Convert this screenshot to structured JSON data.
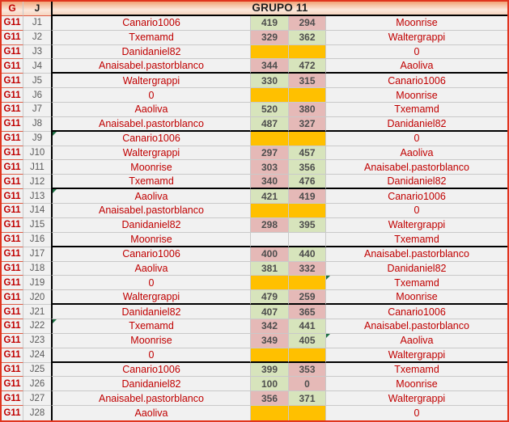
{
  "header": {
    "g": "G",
    "j": "J",
    "title": "GRUPO 11"
  },
  "group_code": "G11",
  "colors": {
    "outer_border": "#E0351F",
    "header_gradient_top": "#F2A477",
    "win_cell": "#D7E4BC",
    "loss_cell": "#E5B9B7",
    "pending_cell": "#FFC000",
    "row_background": "#F1F1F1",
    "gridline": "#C9C9C9",
    "g_column_gridline": "#DD5A43",
    "name_text": "#C00000",
    "comment_flag": "#1F7145"
  },
  "rows": [
    {
      "g": "G11",
      "j": "J1",
      "player": "Canario1006",
      "s1": "419",
      "s1_state": "win",
      "s2": "294",
      "s2_state": "loss",
      "opponent": "Moonrise",
      "player_flag": false,
      "opponent_flag": false,
      "block_end": false
    },
    {
      "g": "G11",
      "j": "J2",
      "player": "Txemamd",
      "s1": "329",
      "s1_state": "loss",
      "s2": "362",
      "s2_state": "win",
      "opponent": "Waltergrappi",
      "player_flag": false,
      "opponent_flag": false,
      "block_end": false
    },
    {
      "g": "G11",
      "j": "J3",
      "player": "Danidaniel82",
      "s1": "",
      "s1_state": "pending",
      "s2": "",
      "s2_state": "pending",
      "opponent": "0",
      "player_flag": false,
      "opponent_flag": false,
      "block_end": false
    },
    {
      "g": "G11",
      "j": "J4",
      "player": "Anaisabel.pastorblanco",
      "s1": "344",
      "s1_state": "loss",
      "s2": "472",
      "s2_state": "win",
      "opponent": "Aaoliva",
      "player_flag": false,
      "opponent_flag": false,
      "block_end": true
    },
    {
      "g": "G11",
      "j": "J5",
      "player": "Waltergrappi",
      "s1": "330",
      "s1_state": "win",
      "s2": "315",
      "s2_state": "loss",
      "opponent": "Canario1006",
      "player_flag": false,
      "opponent_flag": false,
      "block_end": false
    },
    {
      "g": "G11",
      "j": "J6",
      "player": "0",
      "s1": "",
      "s1_state": "pending",
      "s2": "",
      "s2_state": "pending",
      "opponent": "Moonrise",
      "player_flag": false,
      "opponent_flag": false,
      "block_end": false
    },
    {
      "g": "G11",
      "j": "J7",
      "player": "Aaoliva",
      "s1": "520",
      "s1_state": "win",
      "s2": "380",
      "s2_state": "loss",
      "opponent": "Txemamd",
      "player_flag": false,
      "opponent_flag": false,
      "block_end": false
    },
    {
      "g": "G11",
      "j": "J8",
      "player": "Anaisabel.pastorblanco",
      "s1": "487",
      "s1_state": "win",
      "s2": "327",
      "s2_state": "loss",
      "opponent": "Danidaniel82",
      "player_flag": false,
      "opponent_flag": false,
      "block_end": true
    },
    {
      "g": "G11",
      "j": "J9",
      "player": "Canario1006",
      "s1": "",
      "s1_state": "pending",
      "s2": "",
      "s2_state": "pending",
      "opponent": "0",
      "player_flag": true,
      "opponent_flag": false,
      "block_end": false
    },
    {
      "g": "G11",
      "j": "J10",
      "player": "Waltergrappi",
      "s1": "297",
      "s1_state": "loss",
      "s2": "457",
      "s2_state": "win",
      "opponent": "Aaoliva",
      "player_flag": false,
      "opponent_flag": false,
      "block_end": false
    },
    {
      "g": "G11",
      "j": "J11",
      "player": "Moonrise",
      "s1": "303",
      "s1_state": "loss",
      "s2": "356",
      "s2_state": "win",
      "opponent": "Anaisabel.pastorblanco",
      "player_flag": false,
      "opponent_flag": false,
      "block_end": false
    },
    {
      "g": "G11",
      "j": "J12",
      "player": "Txemamd",
      "s1": "340",
      "s1_state": "loss",
      "s2": "476",
      "s2_state": "win",
      "opponent": "Danidaniel82",
      "player_flag": false,
      "opponent_flag": false,
      "block_end": true
    },
    {
      "g": "G11",
      "j": "J13",
      "player": "Aaoliva",
      "s1": "421",
      "s1_state": "win",
      "s2": "419",
      "s2_state": "loss",
      "opponent": "Canario1006",
      "player_flag": true,
      "opponent_flag": false,
      "block_end": false
    },
    {
      "g": "G11",
      "j": "J14",
      "player": "Anaisabel.pastorblanco",
      "s1": "",
      "s1_state": "pending",
      "s2": "",
      "s2_state": "pending",
      "opponent": "0",
      "player_flag": false,
      "opponent_flag": false,
      "block_end": false
    },
    {
      "g": "G11",
      "j": "J15",
      "player": "Danidaniel82",
      "s1": "298",
      "s1_state": "loss",
      "s2": "395",
      "s2_state": "win",
      "opponent": "Waltergrappi",
      "player_flag": false,
      "opponent_flag": false,
      "block_end": false
    },
    {
      "g": "G11",
      "j": "J16",
      "player": "Moonrise",
      "s1": "",
      "s1_state": "empty",
      "s2": "",
      "s2_state": "empty",
      "opponent": "Txemamd",
      "player_flag": false,
      "opponent_flag": false,
      "block_end": true
    },
    {
      "g": "G11",
      "j": "J17",
      "player": "Canario1006",
      "s1": "400",
      "s1_state": "loss",
      "s2": "440",
      "s2_state": "win",
      "opponent": "Anaisabel.pastorblanco",
      "player_flag": false,
      "opponent_flag": false,
      "block_end": false
    },
    {
      "g": "G11",
      "j": "J18",
      "player": "Aaoliva",
      "s1": "381",
      "s1_state": "win",
      "s2": "332",
      "s2_state": "loss",
      "opponent": "Danidaniel82",
      "player_flag": false,
      "opponent_flag": false,
      "block_end": false
    },
    {
      "g": "G11",
      "j": "J19",
      "player": "0",
      "s1": "",
      "s1_state": "pending",
      "s2": "",
      "s2_state": "pending",
      "opponent": "Txemamd",
      "player_flag": false,
      "opponent_flag": true,
      "block_end": false
    },
    {
      "g": "G11",
      "j": "J20",
      "player": "Waltergrappi",
      "s1": "479",
      "s1_state": "win",
      "s2": "259",
      "s2_state": "loss",
      "opponent": "Moonrise",
      "player_flag": false,
      "opponent_flag": false,
      "block_end": true
    },
    {
      "g": "G11",
      "j": "J21",
      "player": "Danidaniel82",
      "s1": "407",
      "s1_state": "win",
      "s2": "365",
      "s2_state": "loss",
      "opponent": "Canario1006",
      "player_flag": false,
      "opponent_flag": false,
      "block_end": false
    },
    {
      "g": "G11",
      "j": "J22",
      "player": "Txemamd",
      "s1": "342",
      "s1_state": "loss",
      "s2": "441",
      "s2_state": "win",
      "opponent": "Anaisabel.pastorblanco",
      "player_flag": true,
      "opponent_flag": false,
      "block_end": false
    },
    {
      "g": "G11",
      "j": "J23",
      "player": "Moonrise",
      "s1": "349",
      "s1_state": "loss",
      "s2": "405",
      "s2_state": "win",
      "opponent": "Aaoliva",
      "player_flag": false,
      "opponent_flag": true,
      "block_end": false
    },
    {
      "g": "G11",
      "j": "J24",
      "player": "0",
      "s1": "",
      "s1_state": "pending",
      "s2": "",
      "s2_state": "pending",
      "opponent": "Waltergrappi",
      "player_flag": false,
      "opponent_flag": false,
      "block_end": true
    },
    {
      "g": "G11",
      "j": "J25",
      "player": "Canario1006",
      "s1": "399",
      "s1_state": "win",
      "s2": "353",
      "s2_state": "loss",
      "opponent": "Txemamd",
      "player_flag": false,
      "opponent_flag": false,
      "block_end": false
    },
    {
      "g": "G11",
      "j": "J26",
      "player": "Danidaniel82",
      "s1": "100",
      "s1_state": "win",
      "s2": "0",
      "s2_state": "loss",
      "opponent": "Moonrise",
      "player_flag": false,
      "opponent_flag": false,
      "block_end": false
    },
    {
      "g": "G11",
      "j": "J27",
      "player": "Anaisabel.pastorblanco",
      "s1": "356",
      "s1_state": "loss",
      "s2": "371",
      "s2_state": "win",
      "opponent": "Waltergrappi",
      "player_flag": false,
      "opponent_flag": false,
      "block_end": false
    },
    {
      "g": "G11",
      "j": "J28",
      "player": "Aaoliva",
      "s1": "",
      "s1_state": "pending",
      "s2": "",
      "s2_state": "pending",
      "opponent": "0",
      "player_flag": false,
      "opponent_flag": false,
      "block_end": false
    }
  ]
}
